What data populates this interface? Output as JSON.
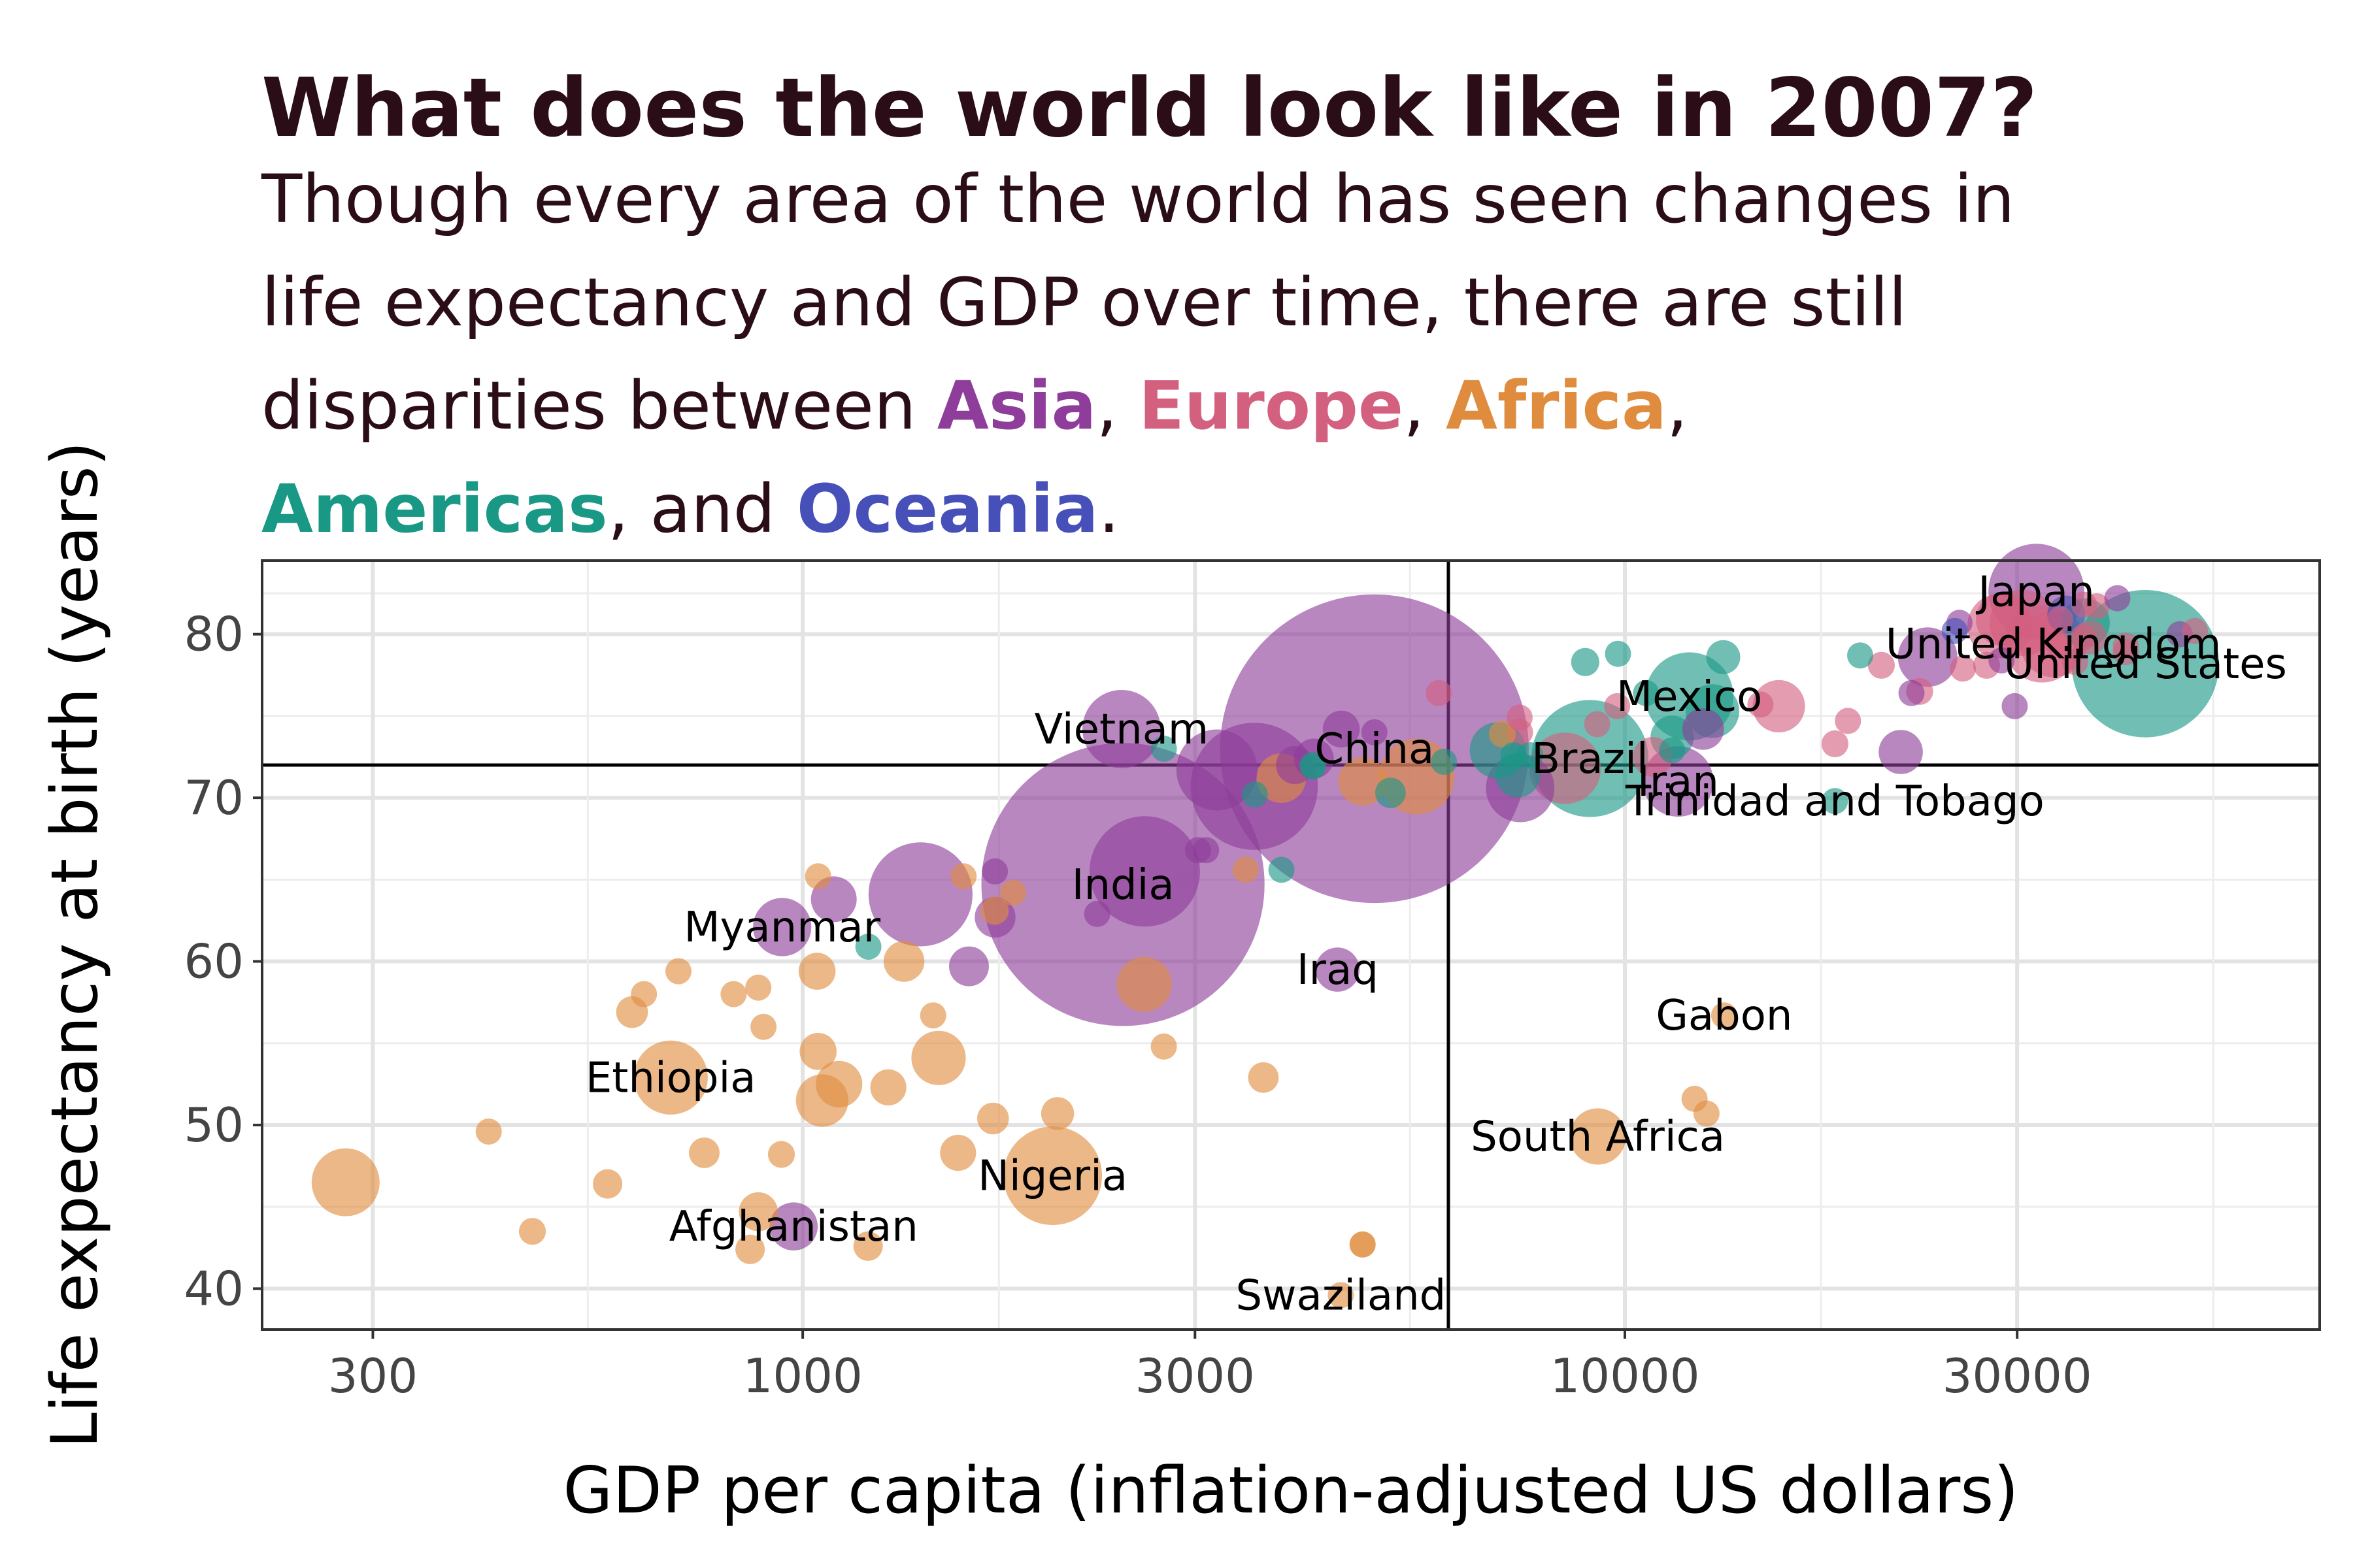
{
  "title": "What does the world look like in 2007?",
  "subtitle": {
    "line1": "Though every area of the world has seen changes in",
    "line2": "life expectancy and GDP over time, there are still",
    "line3_prefix": "disparities between ",
    "asia": "Asia",
    "comma1": ", ",
    "europe": "Europe",
    "comma2": ", ",
    "africa": "Africa",
    "comma3": ",",
    "americas": "Americas",
    "and": ", and ",
    "oceania": "Oceania",
    "end": "."
  },
  "colors": {
    "Asia": "#8e3d9a",
    "Europe": "#d4607f",
    "Africa": "#e08c3f",
    "Americas": "#1a9886",
    "Oceania": "#4750b8"
  },
  "chart_data": {
    "type": "scatter",
    "xlabel": "GDP per capita (inflation-adjusted US dollars)",
    "ylabel": "Life expectancy at birth (years)",
    "x_scale": "log10",
    "xlim": [
      220,
      70000
    ],
    "ylim": [
      37.5,
      84.5
    ],
    "x_ticks": [
      300,
      1000,
      3000,
      10000,
      30000
    ],
    "x_tick_labels": [
      "300",
      "1000",
      "3000",
      "10000",
      "30000"
    ],
    "y_ticks": [
      40,
      50,
      60,
      70,
      80
    ],
    "y_tick_labels": [
      "40",
      "50",
      "60",
      "70",
      "80"
    ],
    "grid": true,
    "reference_lines": {
      "x": 6100,
      "y": 72
    },
    "labels": [
      {
        "text": "Japan",
        "x": 31656,
        "y": 82.6
      },
      {
        "text": "United Kingdom",
        "x": 33203,
        "y": 79.4
      },
      {
        "text": "United States",
        "x": 42952,
        "y": 78.2
      },
      {
        "text": "Mexico",
        "x": 11978,
        "y": 76.2
      },
      {
        "text": "Vietnam",
        "x": 2442,
        "y": 74.2
      },
      {
        "text": "China",
        "x": 4959,
        "y": 73.0
      },
      {
        "text": "Brazil",
        "x": 9066,
        "y": 72.4
      },
      {
        "text": "Iran",
        "x": 11606,
        "y": 71.0
      },
      {
        "text": "Trinidad and Tobago",
        "x": 18009,
        "y": 69.8
      },
      {
        "text": "India",
        "x": 2452,
        "y": 64.7
      },
      {
        "text": "Myanmar",
        "x": 944,
        "y": 62.1
      },
      {
        "text": "Iraq",
        "x": 4471,
        "y": 59.5
      },
      {
        "text": "Gabon",
        "x": 13206,
        "y": 56.7
      },
      {
        "text": "Ethiopia",
        "x": 691,
        "y": 52.9
      },
      {
        "text": "South Africa",
        "x": 9270,
        "y": 49.3
      },
      {
        "text": "Nigeria",
        "x": 2014,
        "y": 46.9
      },
      {
        "text": "Afghanistan",
        "x": 975,
        "y": 43.8
      },
      {
        "text": "Swaziland",
        "x": 4513,
        "y": 39.6
      }
    ],
    "series": [
      {
        "continent": "Asia",
        "points": [
          {
            "x": 4959,
            "y": 73.0,
            "pop": 1319
          },
          {
            "x": 2452,
            "y": 64.7,
            "pop": 1110
          },
          {
            "x": 3541,
            "y": 70.7,
            "pop": 224
          },
          {
            "x": 2606,
            "y": 65.5,
            "pop": 169
          },
          {
            "x": 1391,
            "y": 64.1,
            "pop": 150
          },
          {
            "x": 31656,
            "y": 82.6,
            "pop": 127
          },
          {
            "x": 3190,
            "y": 71.7,
            "pop": 91
          },
          {
            "x": 2442,
            "y": 74.2,
            "pop": 85
          },
          {
            "x": 11606,
            "y": 71.0,
            "pop": 69
          },
          {
            "x": 7458,
            "y": 70.6,
            "pop": 65
          },
          {
            "x": 944,
            "y": 62.1,
            "pop": 47
          },
          {
            "x": 23348,
            "y": 78.6,
            "pop": 49
          },
          {
            "x": 975,
            "y": 43.8,
            "pop": 32
          },
          {
            "x": 12452,
            "y": 74.2,
            "pop": 24
          },
          {
            "x": 4471,
            "y": 59.5,
            "pop": 27
          },
          {
            "x": 1091,
            "y": 63.8,
            "pop": 29
          },
          {
            "x": 21655,
            "y": 72.8,
            "pop": 27
          },
          {
            "x": 4185,
            "y": 72.4,
            "pop": 22
          },
          {
            "x": 3970,
            "y": 72.0,
            "pop": 20
          },
          {
            "x": 1714,
            "y": 62.7,
            "pop": 23
          },
          {
            "x": 1593,
            "y": 59.7,
            "pop": 22
          },
          {
            "x": 39725,
            "y": 82.2,
            "pop": 7
          },
          {
            "x": 47307,
            "y": 80.0,
            "pop": 7
          },
          {
            "x": 28718,
            "y": 78.4,
            "pop": 6.4
          },
          {
            "x": 4519,
            "y": 74.2,
            "pop": 19
          },
          {
            "x": 25523,
            "y": 80.7,
            "pop": 4.5
          },
          {
            "x": 3095,
            "y": 66.8,
            "pop": 2.9
          },
          {
            "x": 29796,
            "y": 75.6,
            "pop": 0.7
          },
          {
            "x": 2281,
            "y": 62.9,
            "pop": 2.8
          },
          {
            "x": 22316,
            "y": 76.4,
            "pop": 4.6
          },
          {
            "x": 1713,
            "y": 65.5,
            "pop": 2
          },
          {
            "x": 4959,
            "y": 74.0,
            "pop": 6
          },
          {
            "x": 3025,
            "y": 66.8,
            "pop": 1.5
          }
        ]
      },
      {
        "continent": "Europe",
        "points": [
          {
            "x": 32170,
            "y": 79.4,
            "pop": 82
          },
          {
            "x": 30470,
            "y": 80.7,
            "pop": 61
          },
          {
            "x": 33203,
            "y": 79.4,
            "pop": 61
          },
          {
            "x": 28570,
            "y": 80.5,
            "pop": 58
          },
          {
            "x": 28821,
            "y": 80.9,
            "pop": 40
          },
          {
            "x": 15390,
            "y": 75.6,
            "pop": 38
          },
          {
            "x": 8458,
            "y": 71.8,
            "pop": 71
          },
          {
            "x": 10808,
            "y": 72.5,
            "pop": 22
          },
          {
            "x": 36798,
            "y": 79.8,
            "pop": 16
          },
          {
            "x": 27539,
            "y": 78.1,
            "pop": 10
          },
          {
            "x": 22833,
            "y": 76.5,
            "pop": 10
          },
          {
            "x": 33693,
            "y": 79.4,
            "pop": 10
          },
          {
            "x": 18009,
            "y": 73.3,
            "pop": 10
          },
          {
            "x": 20510,
            "y": 78.1,
            "pop": 10
          },
          {
            "x": 7446,
            "y": 74.0,
            "pop": 10
          },
          {
            "x": 33860,
            "y": 80.9,
            "pop": 9
          },
          {
            "x": 36126,
            "y": 79.8,
            "pop": 8
          },
          {
            "x": 37506,
            "y": 81.7,
            "pop": 7.5
          },
          {
            "x": 9787,
            "y": 75.6,
            "pop": 7.3
          },
          {
            "x": 35278,
            "y": 78.3,
            "pop": 5.5
          },
          {
            "x": 40676,
            "y": 79.3,
            "pop": 5.3
          },
          {
            "x": 18678,
            "y": 74.7,
            "pop": 5.4
          },
          {
            "x": 14619,
            "y": 75.7,
            "pop": 4.5
          },
          {
            "x": 40675,
            "y": 78.9,
            "pop": 4.1
          },
          {
            "x": 25768,
            "y": 77.9,
            "pop": 2.0
          },
          {
            "x": 49357,
            "y": 80.2,
            "pop": 4.6
          },
          {
            "x": 9254,
            "y": 74.5,
            "pop": 0.7
          },
          {
            "x": 5937,
            "y": 76.4,
            "pop": 3.6
          },
          {
            "x": 7446,
            "y": 74.9,
            "pop": 2.1
          },
          {
            "x": 36181,
            "y": 81.8,
            "pop": 0.3
          }
        ]
      },
      {
        "continent": "Africa",
        "points": [
          {
            "x": 2014,
            "y": 46.9,
            "pop": 135
          },
          {
            "x": 5581,
            "y": 71.3,
            "pop": 80
          },
          {
            "x": 691,
            "y": 52.9,
            "pop": 76
          },
          {
            "x": 278,
            "y": 46.5,
            "pop": 64
          },
          {
            "x": 9270,
            "y": 49.3,
            "pop": 44
          },
          {
            "x": 1463,
            "y": 54.1,
            "pop": 41
          },
          {
            "x": 1056,
            "y": 51.5,
            "pop": 38
          },
          {
            "x": 2602,
            "y": 58.6,
            "pop": 42
          },
          {
            "x": 1107,
            "y": 52.5,
            "pop": 30
          },
          {
            "x": 4797,
            "y": 71.0,
            "pop": 33
          },
          {
            "x": 3820,
            "y": 71.2,
            "pop": 34
          },
          {
            "x": 1328,
            "y": 60.0,
            "pop": 23
          },
          {
            "x": 1041,
            "y": 59.4,
            "pop": 19
          },
          {
            "x": 1545,
            "y": 48.3,
            "pop": 18
          },
          {
            "x": 1044,
            "y": 54.5,
            "pop": 19
          },
          {
            "x": 1271,
            "y": 52.3,
            "pop": 18
          },
          {
            "x": 1704,
            "y": 50.4,
            "pop": 14
          },
          {
            "x": 759,
            "y": 48.3,
            "pop": 13
          },
          {
            "x": 883,
            "y": 44.7,
            "pop": 21
          },
          {
            "x": 863,
            "y": 42.4,
            "pop": 12
          },
          {
            "x": 1201,
            "y": 42.6,
            "pop": 12
          },
          {
            "x": 469,
            "y": 43.5,
            "pop": 10
          },
          {
            "x": 942,
            "y": 48.2,
            "pop": 10
          },
          {
            "x": 7093,
            "y": 73.9,
            "pop": 10
          },
          {
            "x": 1441,
            "y": 56.7,
            "pop": 9
          },
          {
            "x": 1712,
            "y": 63.1,
            "pop": 11
          },
          {
            "x": 620,
            "y": 56.9,
            "pop": 14
          },
          {
            "x": 4797,
            "y": 42.7,
            "pop": 6
          },
          {
            "x": 2042,
            "y": 50.7,
            "pop": 15
          },
          {
            "x": 883,
            "y": 58.4,
            "pop": 6
          },
          {
            "x": 3633,
            "y": 52.9,
            "pop": 13
          },
          {
            "x": 579,
            "y": 46.4,
            "pop": 12
          },
          {
            "x": 415,
            "y": 49.6,
            "pop": 6
          },
          {
            "x": 896,
            "y": 56.0,
            "pop": 6
          },
          {
            "x": 641,
            "y": 58.0,
            "pop": 3
          },
          {
            "x": 4513,
            "y": 39.6,
            "pop": 1.1
          },
          {
            "x": 1803,
            "y": 64.2,
            "pop": 5.8
          },
          {
            "x": 13206,
            "y": 56.7,
            "pop": 1.5
          },
          {
            "x": 12570,
            "y": 50.7,
            "pop": 1.6
          },
          {
            "x": 2749,
            "y": 54.8,
            "pop": 0.7
          },
          {
            "x": 3457,
            "y": 65.6,
            "pop": 1.3
          },
          {
            "x": 12154,
            "y": 51.6,
            "pop": 0.6
          },
          {
            "x": 1569,
            "y": 65.2,
            "pop": 0.2
          },
          {
            "x": 706,
            "y": 59.4,
            "pop": 2.0
          },
          {
            "x": 4797,
            "y": 42.7,
            "pop": 2.0
          },
          {
            "x": 1044,
            "y": 65.2,
            "pop": 0.7
          },
          {
            "x": 824,
            "y": 58.0,
            "pop": 1.0
          }
        ]
      },
      {
        "continent": "Americas",
        "points": [
          {
            "x": 42952,
            "y": 78.2,
            "pop": 301
          },
          {
            "x": 9066,
            "y": 72.4,
            "pop": 190
          },
          {
            "x": 11978,
            "y": 76.2,
            "pop": 108
          },
          {
            "x": 7007,
            "y": 72.9,
            "pop": 44
          },
          {
            "x": 12779,
            "y": 75.3,
            "pop": 40
          },
          {
            "x": 36319,
            "y": 80.7,
            "pop": 33
          },
          {
            "x": 7409,
            "y": 71.4,
            "pop": 28
          },
          {
            "x": 11416,
            "y": 73.7,
            "pop": 26
          },
          {
            "x": 13172,
            "y": 78.6,
            "pop": 16
          },
          {
            "x": 5187,
            "y": 70.3,
            "pop": 13
          },
          {
            "x": 8948,
            "y": 78.3,
            "pop": 11
          },
          {
            "x": 3822,
            "y": 65.6,
            "pop": 9
          },
          {
            "x": 6025,
            "y": 72.2,
            "pop": 9
          },
          {
            "x": 1202,
            "y": 60.9,
            "pop": 8.5
          },
          {
            "x": 3548,
            "y": 70.2,
            "pop": 7.5
          },
          {
            "x": 4172,
            "y": 72.0,
            "pop": 6
          },
          {
            "x": 2749,
            "y": 73.0,
            "pop": 5.7
          },
          {
            "x": 4173,
            "y": 71.9,
            "pop": 6.9
          },
          {
            "x": 9809,
            "y": 78.8,
            "pop": 4.1
          },
          {
            "x": 18009,
            "y": 69.8,
            "pop": 1.1
          },
          {
            "x": 7321,
            "y": 72.6,
            "pop": 2.8
          },
          {
            "x": 10611,
            "y": 76.4,
            "pop": 3.4
          },
          {
            "x": 7670,
            "y": 72.6,
            "pop": 2.8
          },
          {
            "x": 19329,
            "y": 78.7,
            "pop": 4
          },
          {
            "x": 11416,
            "y": 72.9,
            "pop": 3.9
          }
        ]
      },
      {
        "continent": "Oceania",
        "points": [
          {
            "x": 34435,
            "y": 81.2,
            "pop": 20
          },
          {
            "x": 25185,
            "y": 80.2,
            "pop": 4.1
          }
        ]
      }
    ]
  }
}
